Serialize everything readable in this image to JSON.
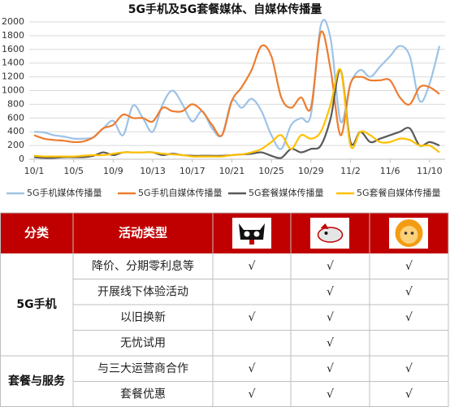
{
  "chart_data": {
    "type": "line",
    "title": "5G手机及5G套餐媒体、自媒体传播量",
    "categories": [
      "10/1",
      null,
      null,
      null,
      "10/5",
      null,
      null,
      null,
      "10/9",
      null,
      null,
      null,
      "10/13",
      null,
      null,
      null,
      "10/17",
      null,
      null,
      null,
      "10/21",
      null,
      null,
      null,
      "10/25",
      null,
      null,
      null,
      "10/29",
      null,
      null,
      null,
      "11/2",
      null,
      null,
      null,
      "11/6",
      null,
      null,
      null,
      "11/10",
      null
    ],
    "series": [
      {
        "name": "5G手机媒体传播量",
        "color": "#9dc3e6",
        "values": [
          400,
          390,
          350,
          330,
          300,
          300,
          320,
          450,
          560,
          350,
          780,
          600,
          400,
          800,
          1000,
          800,
          550,
          700,
          450,
          350,
          850,
          750,
          880,
          700,
          350,
          150,
          500,
          600,
          650,
          1950,
          1750,
          550,
          1100,
          1300,
          1200,
          1350,
          1500,
          1650,
          1500,
          850,
          1100,
          1650
        ]
      },
      {
        "name": "5G手机自媒体传播量",
        "color": "#ed7d31",
        "values": [
          350,
          300,
          280,
          270,
          250,
          260,
          320,
          450,
          500,
          650,
          600,
          600,
          550,
          750,
          700,
          700,
          800,
          700,
          500,
          350,
          850,
          1050,
          1300,
          1650,
          1500,
          900,
          750,
          900,
          750,
          1850,
          1300,
          350,
          1100,
          1200,
          1150,
          1150,
          1150,
          900,
          800,
          1050,
          1050,
          950
        ]
      },
      {
        "name": "5G套餐媒体传播量",
        "color": "#595959",
        "values": [
          30,
          20,
          20,
          30,
          30,
          30,
          50,
          100,
          60,
          100,
          100,
          100,
          100,
          60,
          80,
          60,
          50,
          50,
          50,
          50,
          60,
          70,
          80,
          100,
          50,
          20,
          150,
          100,
          150,
          200,
          600,
          1300,
          250,
          400,
          250,
          300,
          350,
          400,
          450,
          200,
          250,
          200
        ]
      },
      {
        "name": "5G套餐自媒体传播量",
        "color": "#ffc000",
        "values": [
          50,
          40,
          40,
          40,
          40,
          50,
          60,
          60,
          80,
          100,
          100,
          100,
          100,
          80,
          70,
          60,
          40,
          40,
          40,
          40,
          60,
          70,
          100,
          150,
          250,
          350,
          150,
          350,
          300,
          400,
          800,
          1300,
          200,
          400,
          350,
          250,
          250,
          300,
          280,
          200,
          200,
          100
        ]
      }
    ],
    "ylim": [
      0,
      2000
    ],
    "yticks": [
      0,
      200,
      400,
      600,
      800,
      1000,
      1200,
      1400,
      1600,
      1800,
      2000
    ],
    "grid": true,
    "legend": "bottom"
  },
  "table": {
    "header": [
      "分类",
      "活动类型"
    ],
    "check_symbol": "√",
    "groups": [
      {
        "name": "5G手机",
        "rows": [
          {
            "activity": "降价、分期零利息等",
            "checks": [
              true,
              true,
              true
            ]
          },
          {
            "activity": "开展线下体验活动",
            "checks": [
              false,
              true,
              true
            ]
          },
          {
            "activity": "以旧换新",
            "checks": [
              true,
              true,
              true
            ]
          },
          {
            "activity": "无忧试用",
            "checks": [
              false,
              true,
              false
            ]
          }
        ]
      },
      {
        "name": "套餐与服务",
        "rows": [
          {
            "activity": "与三大运营商合作",
            "checks": [
              true,
              true,
              true
            ]
          },
          {
            "activity": "套餐优惠",
            "checks": [
              true,
              true,
              true
            ]
          }
        ]
      }
    ]
  }
}
